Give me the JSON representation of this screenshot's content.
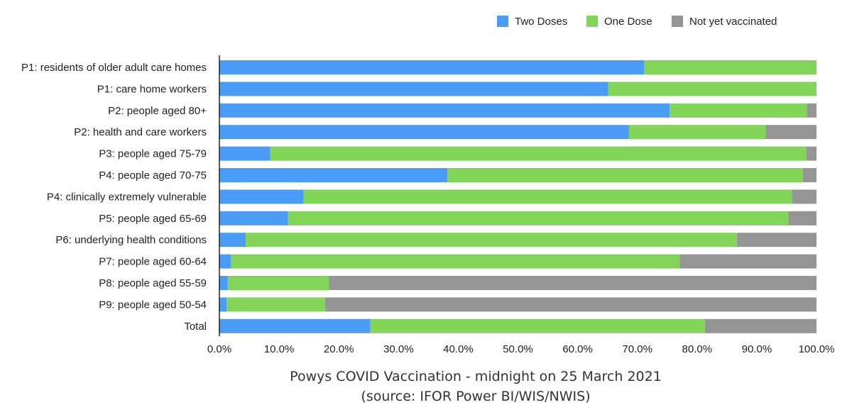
{
  "chart_data": {
    "type": "bar",
    "orientation": "horizontal",
    "stacked": true,
    "title": "Powys COVID Vaccination - midnight on 25 March 2021",
    "subtitle": "(source: IFOR Power BI/WIS/NWIS)",
    "xlabel": "",
    "ylabel": "",
    "xlim": [
      0,
      100
    ],
    "x_ticks": [
      "0.0%",
      "10.0%",
      "20.0%",
      "30.0%",
      "40.0%",
      "50.0%",
      "60.0%",
      "70.0%",
      "80.0%",
      "90.0%",
      "100.0%"
    ],
    "grid": false,
    "legend_position": "top-right",
    "categories": [
      "P1: residents of older adult care homes",
      "P1: care home workers",
      "P2: people aged 80+",
      "P2: health and care workers",
      "P3: people aged 75-79",
      "P4: people aged 70-75",
      "P4: clinically extremely vulnerable",
      "P5: people aged 65-69",
      "P6: underlying health conditions",
      "P7: people aged 60-64",
      "P8: people aged 55-59",
      "P9: people aged 50-54",
      "Total"
    ],
    "series": [
      {
        "name": "Two Doses",
        "color": "#4a9cf7",
        "values": [
          71.1,
          65.1,
          75.4,
          68.6,
          8.5,
          38.2,
          14.1,
          11.5,
          4.4,
          1.9,
          1.4,
          1.2,
          25.3
        ]
      },
      {
        "name": "One Dose",
        "color": "#83d55a",
        "values": [
          28.9,
          34.9,
          23.0,
          22.9,
          89.8,
          59.5,
          81.8,
          83.8,
          82.3,
          75.2,
          16.9,
          16.5,
          56.0
        ]
      },
      {
        "name": "Not yet vaccinated",
        "color": "#959595",
        "values": [
          0.0,
          0.0,
          1.6,
          8.5,
          1.7,
          2.3,
          4.1,
          4.7,
          13.3,
          22.9,
          81.7,
          82.3,
          18.7
        ]
      }
    ]
  }
}
